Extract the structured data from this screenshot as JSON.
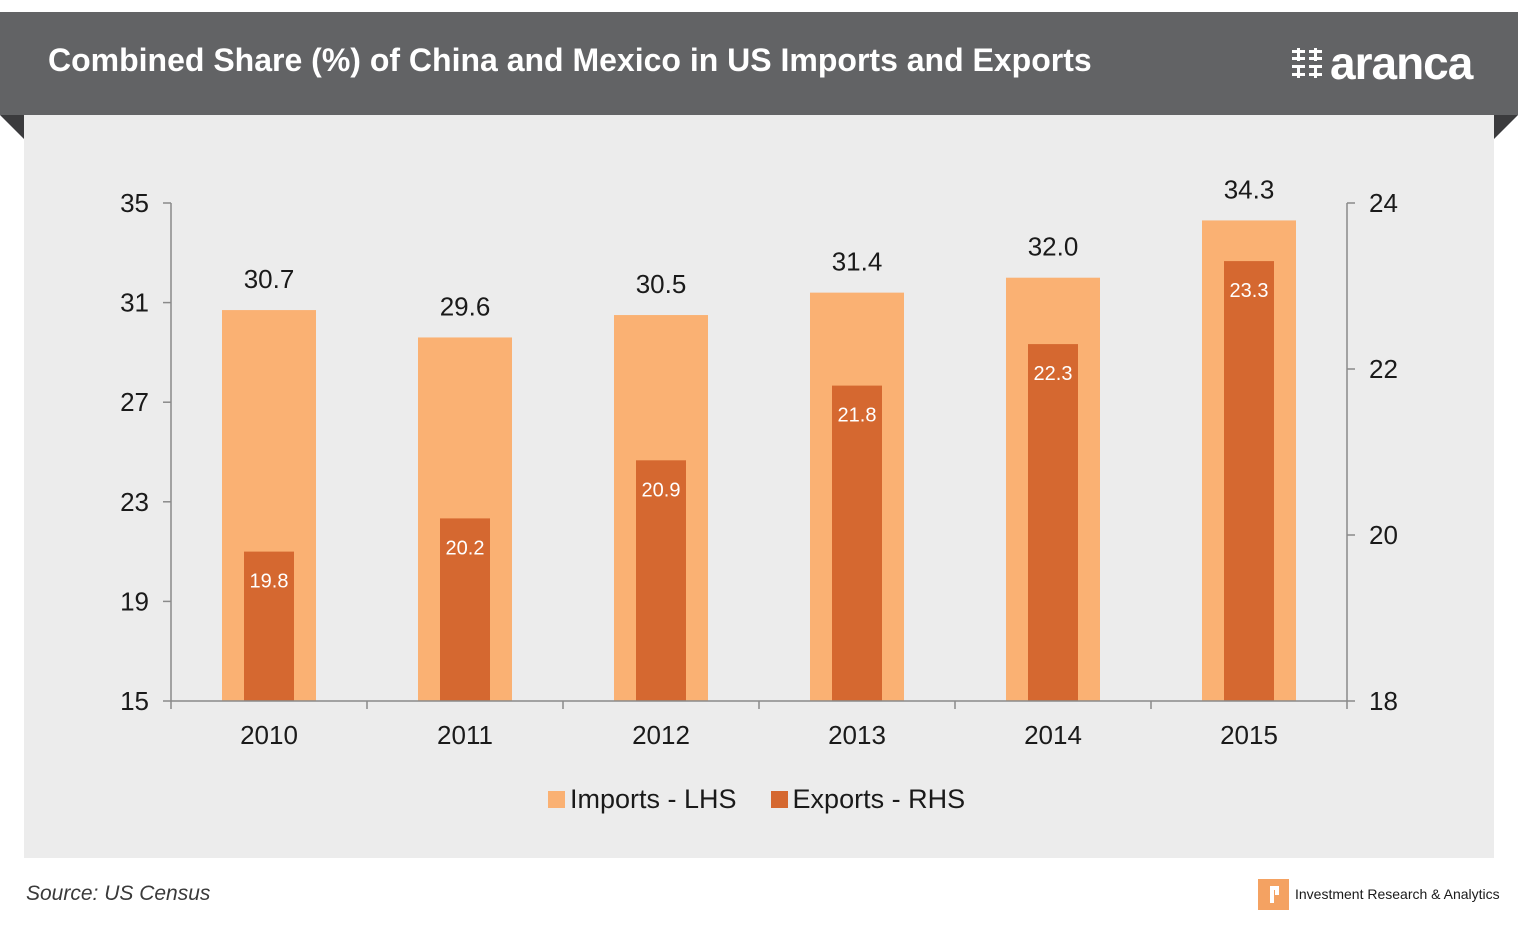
{
  "header": {
    "title": "Combined Share (%) of China and Mexico in US Imports and Exports",
    "brand": "aranca",
    "brand_icon": "aranca-logo-icon"
  },
  "footer": {
    "source": "Source: US Census",
    "tagline": "Investment Research & Analytics",
    "tagline_icon": "aranca-mark-icon"
  },
  "colors": {
    "header_bg": "#626365",
    "panel_bg": "#ececec",
    "imports": "#fab173",
    "exports": "#d56830"
  },
  "chart_data": {
    "type": "bar",
    "title": "Combined Share (%) of China and Mexico in US Imports and Exports",
    "categories": [
      "2010",
      "2011",
      "2012",
      "2013",
      "2014",
      "2015"
    ],
    "series": [
      {
        "name": "Imports - LHS",
        "axis": "left",
        "color": "#fab173",
        "values": [
          30.7,
          29.6,
          30.5,
          31.4,
          32.0,
          34.3
        ],
        "labels": [
          "30.7",
          "29.6",
          "30.5",
          "31.4",
          "32.0",
          "34.3"
        ]
      },
      {
        "name": "Exports - RHS",
        "axis": "right",
        "color": "#d56830",
        "values": [
          19.8,
          20.2,
          20.9,
          21.8,
          22.3,
          23.3
        ],
        "labels": [
          "19.8",
          "20.2",
          "20.9",
          "21.8",
          "22.3",
          "23.3"
        ]
      }
    ],
    "y_left": {
      "min": 15,
      "max": 35,
      "ticks": [
        15,
        19,
        23,
        27,
        31,
        35
      ]
    },
    "y_right": {
      "min": 18,
      "max": 24,
      "ticks": [
        18,
        20,
        22,
        24
      ]
    },
    "grid": false,
    "legend_position": "bottom-center"
  }
}
